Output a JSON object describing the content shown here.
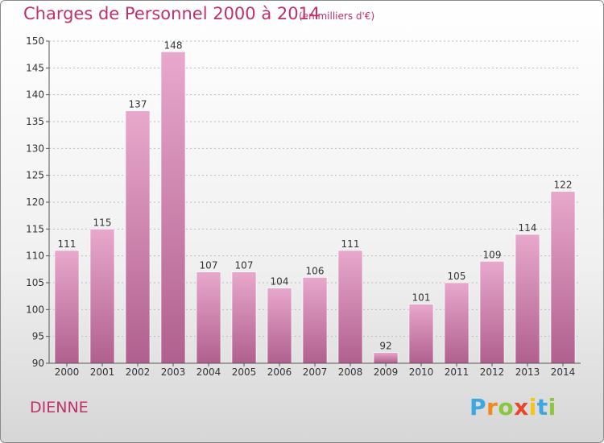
{
  "title": "Charges de Personnel 2000 à 2014",
  "subtitle": "(en milliers d'€)",
  "place": "DIENNE",
  "logo": {
    "text": "Proxiti",
    "letters": [
      "P",
      "r",
      "o",
      "x",
      "i",
      "t",
      "i"
    ],
    "colors": [
      "#3fa7e0",
      "#f08a1c",
      "#8cc63e",
      "#e8462c",
      "#f5c518",
      "#3fa7e0",
      "#8cc63e"
    ]
  },
  "colors": {
    "accent": "#c0306a",
    "bar_top": "#e8a8cc",
    "bar_bottom": "#b0608e",
    "grid": "#bbbbbb"
  },
  "chart_data": {
    "type": "bar",
    "categories": [
      "2000",
      "2001",
      "2002",
      "2003",
      "2004",
      "2005",
      "2006",
      "2007",
      "2008",
      "2009",
      "2010",
      "2011",
      "2012",
      "2013",
      "2014"
    ],
    "values": [
      111,
      115,
      137,
      148,
      107,
      107,
      104,
      106,
      111,
      92,
      101,
      105,
      109,
      114,
      122
    ],
    "ylim": [
      90,
      150
    ],
    "yticks": [
      90,
      95,
      100,
      105,
      110,
      115,
      120,
      125,
      130,
      135,
      140,
      145,
      150
    ],
    "xlabel": "",
    "ylabel": "",
    "grid": true,
    "data_labels": true
  }
}
